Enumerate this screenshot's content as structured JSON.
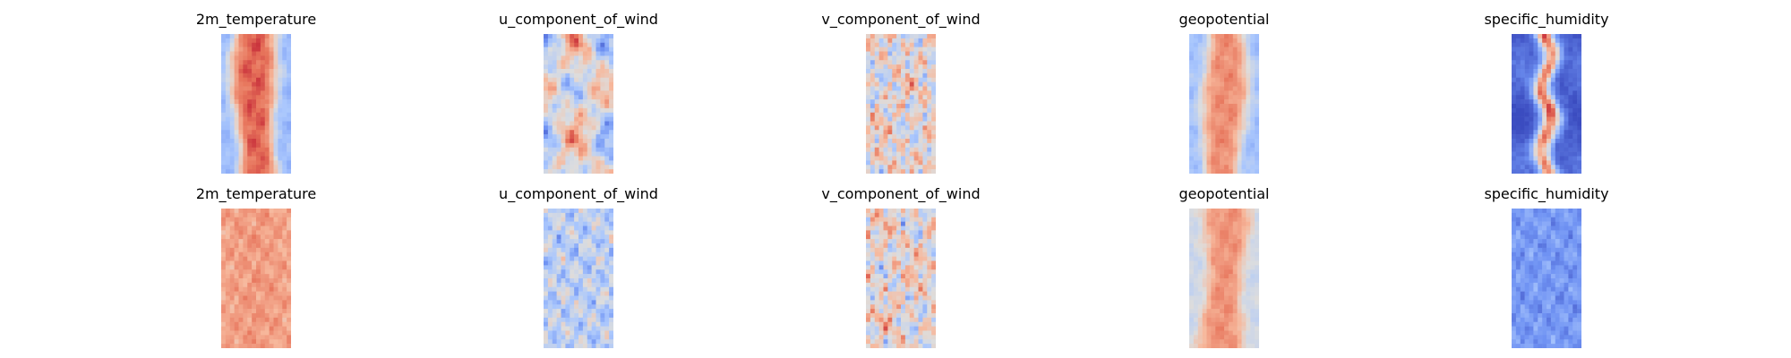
{
  "figure": {
    "colormap": "coolwarm",
    "colormap_stops": [
      "#3b4cc0",
      "#6f92f3",
      "#aac7fd",
      "#dddddd",
      "#f7b89c",
      "#e7745b",
      "#b40426"
    ]
  },
  "chart_data": [
    {
      "type": "heatmap",
      "row": 1,
      "title": "2m_temperature",
      "grid": false,
      "pattern": "warm-center-band",
      "value_range": [
        0,
        1
      ],
      "center_level": 0.86,
      "edge_level": 0.3
    },
    {
      "type": "heatmap",
      "row": 1,
      "title": "u_component_of_wind",
      "grid": false,
      "pattern": "mixed-noise",
      "value_range": [
        0,
        1
      ],
      "center_level": 0.55,
      "edge_level": 0.42
    },
    {
      "type": "heatmap",
      "row": 1,
      "title": "v_component_of_wind",
      "grid": false,
      "pattern": "fine-noise",
      "value_range": [
        0,
        1
      ],
      "center_level": 0.55,
      "edge_level": 0.5
    },
    {
      "type": "heatmap",
      "row": 1,
      "title": "geopotential",
      "grid": false,
      "pattern": "warm-center-band",
      "value_range": [
        0,
        1
      ],
      "center_level": 0.77,
      "edge_level": 0.32
    },
    {
      "type": "heatmap",
      "row": 1,
      "title": "specific_humidity",
      "grid": false,
      "pattern": "narrow-wavy-band",
      "value_range": [
        0,
        1
      ],
      "center_level": 0.8,
      "edge_level": 0.05
    },
    {
      "type": "heatmap",
      "row": 2,
      "title": "2m_temperature",
      "grid": false,
      "pattern": "uniform-warm",
      "value_range": [
        0,
        1
      ],
      "center_level": 0.74,
      "edge_level": 0.68
    },
    {
      "type": "heatmap",
      "row": 2,
      "title": "u_component_of_wind",
      "grid": false,
      "pattern": "cool-noise",
      "value_range": [
        0,
        1
      ],
      "center_level": 0.42,
      "edge_level": 0.36
    },
    {
      "type": "heatmap",
      "row": 2,
      "title": "v_component_of_wind",
      "grid": false,
      "pattern": "fine-noise",
      "value_range": [
        0,
        1
      ],
      "center_level": 0.55,
      "edge_level": 0.52
    },
    {
      "type": "heatmap",
      "row": 2,
      "title": "geopotential",
      "grid": false,
      "pattern": "warm-center-band",
      "value_range": [
        0,
        1
      ],
      "center_level": 0.76,
      "edge_level": 0.45
    },
    {
      "type": "heatmap",
      "row": 2,
      "title": "specific_humidity",
      "grid": false,
      "pattern": "uniform-cool",
      "value_range": [
        0,
        1
      ],
      "center_level": 0.22,
      "edge_level": 0.16
    }
  ]
}
